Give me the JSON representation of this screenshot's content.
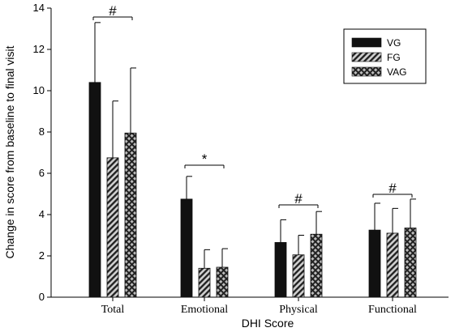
{
  "chart_data": {
    "type": "bar",
    "xlabel": "DHI Score",
    "ylabel": "Change in score from baseline to final visit",
    "ylim": [
      0,
      14
    ],
    "yticks": [
      0,
      2,
      4,
      6,
      8,
      10,
      12,
      14
    ],
    "categories": [
      "Total",
      "Emotional",
      "Physical",
      "Functional"
    ],
    "series": [
      {
        "name": "VG",
        "color": "#111111",
        "pattern": "solid",
        "values": [
          10.4,
          4.75,
          2.65,
          3.25
        ],
        "errors": [
          2.9,
          1.1,
          1.1,
          1.3
        ]
      },
      {
        "name": "FG",
        "color": "#333333",
        "pattern": "diagonal-hatch",
        "values": [
          6.75,
          1.4,
          2.05,
          3.1
        ],
        "errors": [
          2.75,
          0.9,
          0.95,
          1.2
        ]
      },
      {
        "name": "VAG",
        "color": "#333333",
        "pattern": "cross-hatch",
        "values": [
          7.95,
          1.45,
          3.05,
          3.35
        ],
        "errors": [
          3.15,
          0.9,
          1.1,
          1.4
        ]
      }
    ],
    "annotations": [
      {
        "label": "#",
        "category": "Total"
      },
      {
        "label": "*",
        "category": "Emotional"
      },
      {
        "label": "#",
        "category": "Physical"
      },
      {
        "label": "#",
        "category": "Functional"
      }
    ],
    "legend_position": "top-right"
  }
}
